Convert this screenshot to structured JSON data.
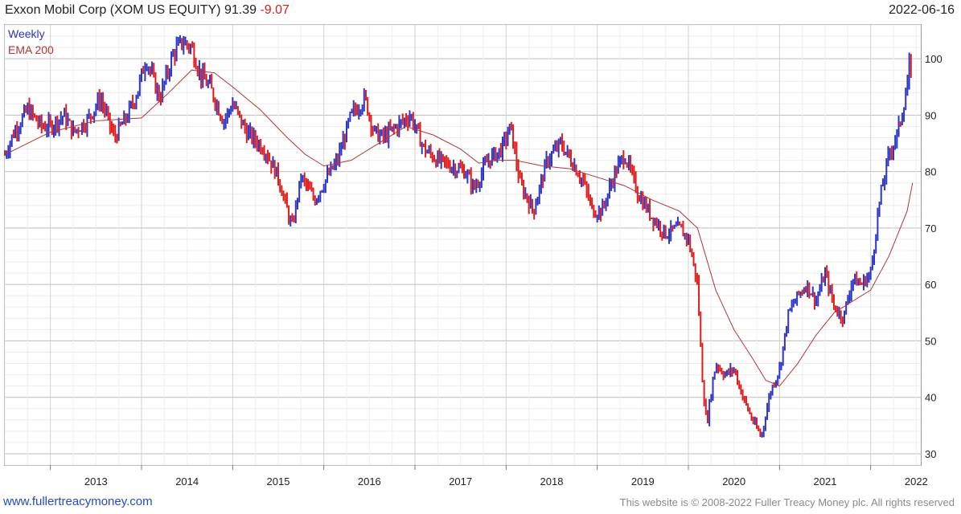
{
  "header": {
    "title": "Exxon Mobil Corp (XOM US EQUITY)",
    "last_price": "91.39",
    "change": "-9.07",
    "date": "2022-06-16"
  },
  "legend": {
    "weekly": "Weekly",
    "ema": "EMA 200"
  },
  "footer": {
    "website": "www.fullertreacymoney.com",
    "copyright": "This website is © 2008-2022 Fuller Treacy Money plc. All rights reserved"
  },
  "colors": {
    "up_bar": "#2b35c8",
    "down_bar": "#e01b1b",
    "ema_line": "#b53333",
    "grid": "#d4d4d4"
  },
  "chart_data": {
    "type": "line",
    "title": "Exxon Mobil Corp (XOM US EQUITY)",
    "xlabel": "",
    "ylabel": "",
    "x_ticks": [
      "2013",
      "2014",
      "2015",
      "2016",
      "2017",
      "2018",
      "2019",
      "2020",
      "2021",
      "2022"
    ],
    "y_ticks": [
      30,
      40,
      50,
      60,
      70,
      80,
      90,
      100
    ],
    "ylim": [
      28,
      106
    ],
    "xlim": [
      2012.5,
      2022.55
    ],
    "grid": true,
    "legend_position": "top-left",
    "series": [
      {
        "name": "Weekly",
        "style": "ohlc-bars",
        "x": [
          2012.5,
          2012.6,
          2012.75,
          2012.9,
          2013.0,
          2013.15,
          2013.25,
          2013.4,
          2013.55,
          2013.7,
          2013.85,
          2013.95,
          2014.05,
          2014.2,
          2014.35,
          2014.45,
          2014.55,
          2014.65,
          2014.75,
          2014.9,
          2015.0,
          2015.15,
          2015.35,
          2015.5,
          2015.6,
          2015.65,
          2015.75,
          2015.9,
          2016.0,
          2016.15,
          2016.3,
          2016.45,
          2016.55,
          2016.65,
          2016.8,
          2016.95,
          2017.1,
          2017.25,
          2017.4,
          2017.55,
          2017.65,
          2017.8,
          2017.95,
          2018.05,
          2018.15,
          2018.3,
          2018.45,
          2018.6,
          2018.75,
          2018.85,
          2018.95,
          2019.05,
          2019.2,
          2019.3,
          2019.45,
          2019.6,
          2019.75,
          2019.9,
          2020.0,
          2020.1,
          2020.15,
          2020.2,
          2020.25,
          2020.3,
          2020.4,
          2020.5,
          2020.6,
          2020.7,
          2020.8,
          2020.9,
          2021.0,
          2021.1,
          2021.2,
          2021.3,
          2021.4,
          2021.5,
          2021.6,
          2021.7,
          2021.8,
          2021.9,
          2022.0,
          2022.1,
          2022.2,
          2022.3,
          2022.4,
          2022.43,
          2022.46
        ],
        "values": [
          83,
          87,
          91,
          88,
          88,
          90,
          87,
          89,
          93,
          86,
          90,
          94,
          100,
          93,
          101,
          103,
          102,
          97,
          95,
          89,
          92,
          87,
          84,
          79,
          73,
          70,
          79,
          75,
          78,
          82,
          90,
          93,
          87,
          86,
          88,
          90,
          84,
          82,
          81,
          80,
          77,
          82,
          84,
          88,
          78,
          73,
          82,
          85,
          81,
          78,
          73,
          73,
          80,
          83,
          76,
          72,
          69,
          70,
          68,
          60,
          44,
          35,
          41,
          46,
          44,
          45,
          40,
          36,
          33,
          41,
          45,
          55,
          58,
          60,
          57,
          62,
          56,
          54,
          61,
          60,
          62,
          75,
          83,
          87,
          95,
          100,
          91.39
        ]
      },
      {
        "name": "EMA 200",
        "style": "line",
        "x": [
          2012.5,
          2013.0,
          2013.5,
          2014.0,
          2014.3,
          2014.55,
          2014.8,
          2015.0,
          2015.3,
          2015.6,
          2015.8,
          2016.0,
          2016.3,
          2016.6,
          2016.9,
          2017.2,
          2017.5,
          2017.7,
          2017.9,
          2018.1,
          2018.4,
          2018.7,
          2019.0,
          2019.3,
          2019.6,
          2019.9,
          2020.1,
          2020.3,
          2020.5,
          2020.7,
          2020.85,
          2021.0,
          2021.2,
          2021.4,
          2021.6,
          2021.8,
          2022.0,
          2022.2,
          2022.4,
          2022.46
        ],
        "values": [
          83,
          87,
          89,
          89.5,
          94,
          98,
          97.5,
          95,
          91,
          86,
          83,
          81,
          82,
          85,
          88,
          86.5,
          84,
          81.5,
          82,
          82,
          81,
          80.5,
          79,
          77.5,
          75,
          73,
          70,
          59,
          52,
          47,
          43,
          42,
          46,
          51,
          55,
          57,
          59,
          65,
          73,
          78
        ]
      }
    ]
  }
}
